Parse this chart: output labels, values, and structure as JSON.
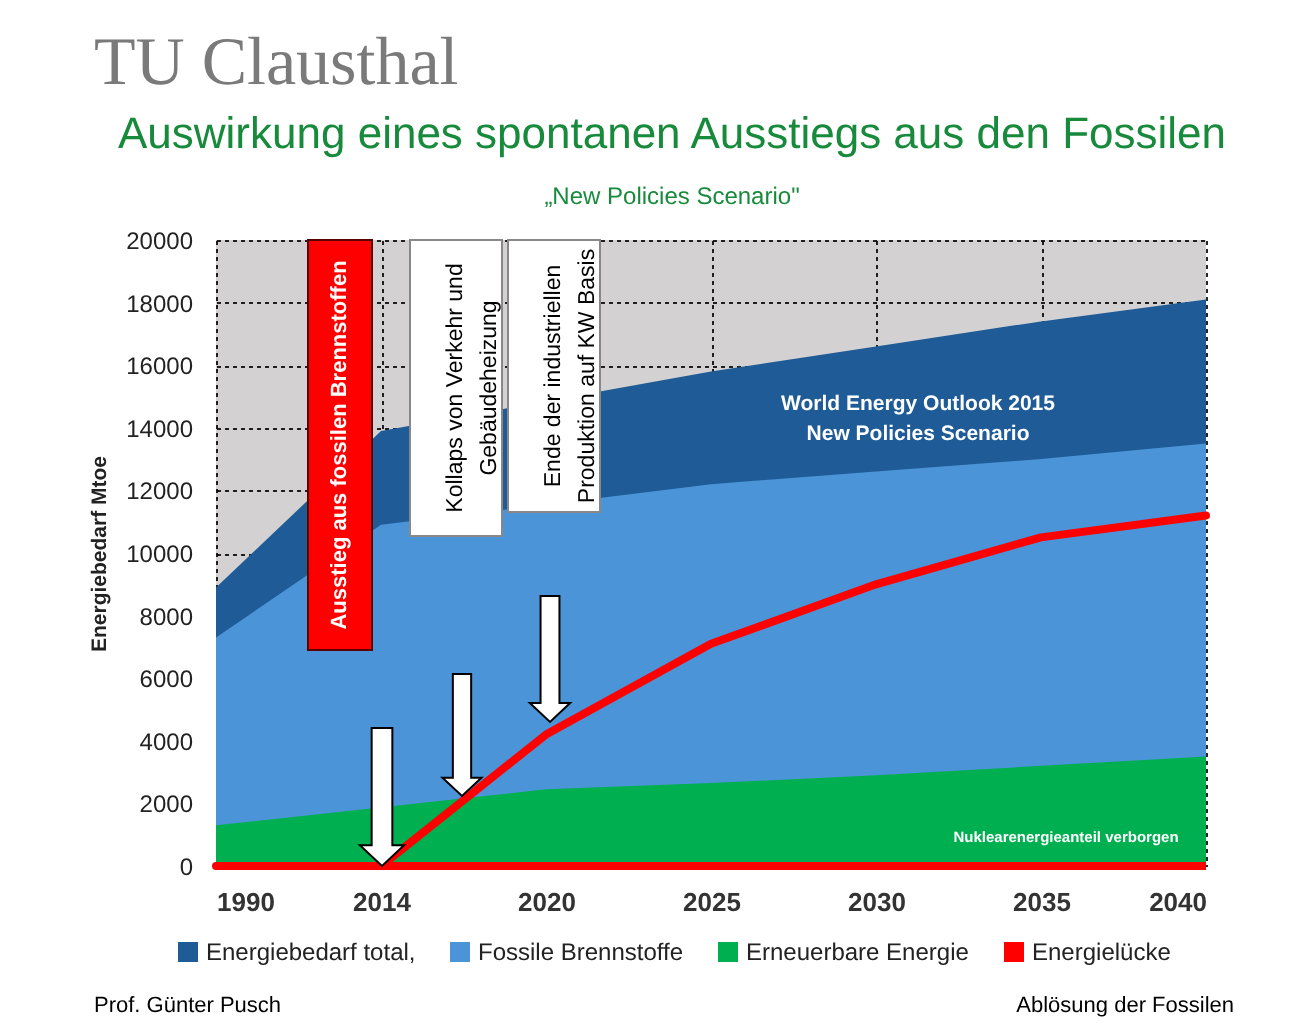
{
  "chart_data": {
    "type": "area",
    "title": "Auswirkung eines spontanen Ausstiegs aus den Fossilen",
    "subtitle": "„New Policies Scenario\"",
    "ylabel": "Energiebedarf Mtoe",
    "categories": [
      "1990",
      "2014",
      "2020",
      "2025",
      "2030",
      "2035",
      "2040"
    ],
    "series": [
      {
        "name": "Energiebedarf total,",
        "color": "#1f5b96",
        "values": [
          8900,
          13900,
          null,
          15800,
          16600,
          17400,
          18100
        ]
      },
      {
        "name": "Fossile Brennstoffe",
        "color": "#4b94d7",
        "values": [
          7300,
          10900,
          null,
          12200,
          12600,
          13000,
          13500
        ]
      },
      {
        "name": "Erneuerbare Energie",
        "color": "#00b050",
        "values": [
          1300,
          null,
          2450,
          2650,
          2900,
          3200,
          3500
        ]
      },
      {
        "name": "Energielücke",
        "type": "line",
        "color": "#ff0000",
        "values": [
          0,
          0,
          4200,
          7100,
          9000,
          10500,
          11200
        ]
      }
    ],
    "ylim": [
      0,
      20000
    ],
    "yticks": [
      0,
      2000,
      4000,
      6000,
      8000,
      10000,
      12000,
      14000,
      16000,
      18000,
      20000
    ],
    "ref_lines": [
      {
        "axis": "y",
        "value": 0,
        "color": "#ff0000"
      }
    ],
    "grid": true,
    "legend": "bottom",
    "annotations": [
      "Ausstieg aus fossilen Brennstoffen",
      "Kollaps von Verkehr und Gebäudeheizung",
      "Ende der industriellen Produktion auf KW Basis",
      "World Energy Outlook 2015\nNew Policies Scenario",
      "Nuklearenergieanteil verborgen",
      "TU Clausthal",
      "Prof. Günter Pusch",
      "Ablösung der Fossilen"
    ]
  }
}
